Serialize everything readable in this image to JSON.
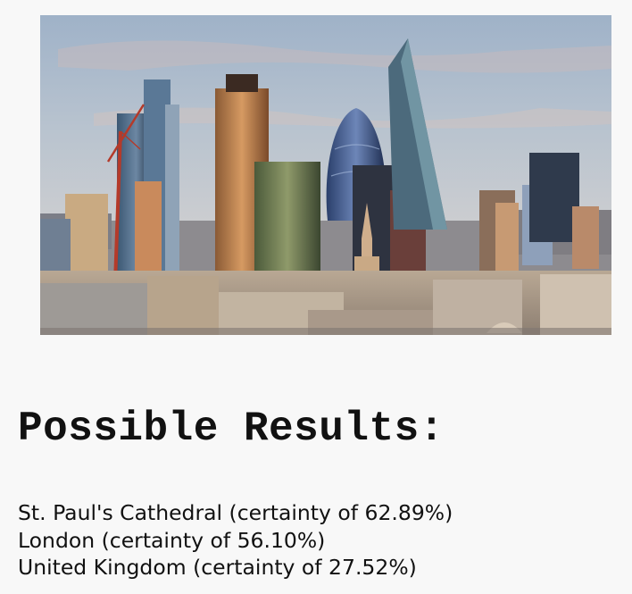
{
  "image": {
    "icon": "city-skyline-photo"
  },
  "heading": "Possible Results:",
  "results": [
    {
      "text": "St. Paul's Cathedral (certainty of 62.89%)"
    },
    {
      "text": "London (certainty of 56.10%)"
    },
    {
      "text": "United Kingdom (certainty of 27.52%)"
    }
  ],
  "colors": {
    "background": "#f8f8f8",
    "text": "#111111"
  }
}
